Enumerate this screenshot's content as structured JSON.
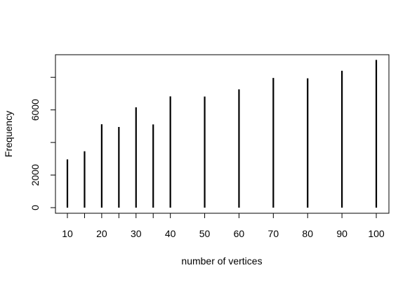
{
  "chart_data": {
    "type": "bar",
    "title": "",
    "xlabel": "number of vertices",
    "ylabel": "Frequency",
    "x": [
      10,
      15,
      20,
      25,
      30,
      35,
      40,
      50,
      60,
      70,
      80,
      90,
      100
    ],
    "values": [
      2960,
      3460,
      5120,
      4950,
      6160,
      5110,
      6830,
      6820,
      7260,
      7960,
      7940,
      8400,
      9070
    ],
    "x_tick_labels": [
      "10",
      "20",
      "30",
      "40",
      "50",
      "60",
      "70",
      "80",
      "90",
      "100"
    ],
    "y_ticks": [
      0,
      2000,
      6000
    ],
    "y_tick_labels": [
      "0",
      "2000",
      "6000"
    ],
    "extra_y_ticks_unlabeled": [
      4000,
      8000
    ],
    "ylim": [
      -380,
      9480
    ],
    "grid": false,
    "legend": "none"
  }
}
